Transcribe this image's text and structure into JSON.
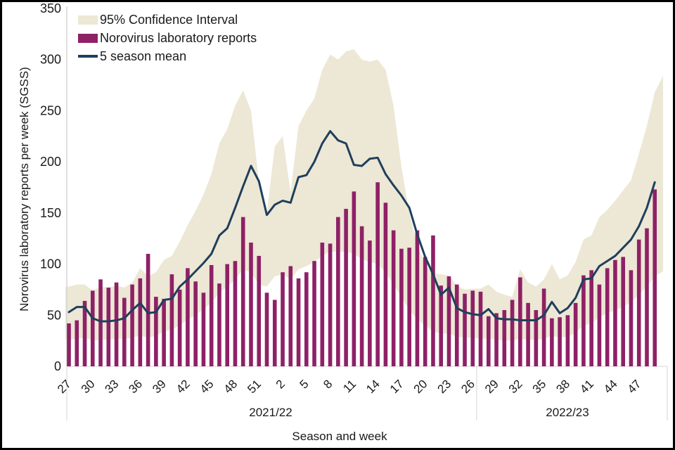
{
  "legend": {
    "ci_label": "95% Confidence Interval",
    "bars_label": "Norovirus laboratory reports",
    "line_label": "5 season mean"
  },
  "axes": {
    "y_title": "Norovirus laboratory reports per week (SGSS)",
    "x_title": "Season and week",
    "y_ticks": [
      0,
      50,
      100,
      150,
      200,
      250,
      300,
      350
    ],
    "x_label_every": 3,
    "season_labels": [
      "2021/22",
      "2022/23"
    ]
  },
  "colors": {
    "bar": "#8E2166",
    "mean_line": "#1F3F5C",
    "ci_band": "#EDE7D5",
    "axis_line": "#d6d6d6",
    "text": "#1a1a1a",
    "frame_border": "#000000"
  },
  "chart_data": {
    "type": "bar",
    "title": "",
    "xlabel": "Season and week",
    "ylabel": "Norovirus laboratory reports per week (SGSS)",
    "ylim": [
      0,
      350
    ],
    "grid": false,
    "legend_position": "top-left",
    "seasons": [
      {
        "label": "2021/22",
        "week_span": [
          27,
          26
        ]
      },
      {
        "label": "2022/23",
        "week_span": [
          27,
          49
        ]
      }
    ],
    "weeks": [
      27,
      28,
      29,
      30,
      31,
      32,
      33,
      34,
      35,
      36,
      37,
      38,
      39,
      40,
      41,
      42,
      43,
      44,
      45,
      46,
      47,
      48,
      49,
      50,
      51,
      52,
      1,
      2,
      3,
      4,
      5,
      6,
      7,
      8,
      9,
      10,
      11,
      12,
      13,
      14,
      15,
      16,
      17,
      18,
      19,
      20,
      21,
      22,
      23,
      24,
      25,
      26,
      27,
      28,
      29,
      30,
      31,
      32,
      33,
      34,
      35,
      36,
      37,
      38,
      39,
      40,
      41,
      42,
      43,
      44,
      45,
      46,
      47,
      48,
      49
    ],
    "season_of_week": [
      0,
      0,
      0,
      0,
      0,
      0,
      0,
      0,
      0,
      0,
      0,
      0,
      0,
      0,
      0,
      0,
      0,
      0,
      0,
      0,
      0,
      0,
      0,
      0,
      0,
      0,
      0,
      0,
      0,
      0,
      0,
      0,
      0,
      0,
      0,
      0,
      0,
      0,
      0,
      0,
      0,
      0,
      0,
      0,
      0,
      0,
      0,
      0,
      0,
      0,
      0,
      0,
      1,
      1,
      1,
      1,
      1,
      1,
      1,
      1,
      1,
      1,
      1,
      1,
      1,
      1,
      1,
      1,
      1,
      1,
      1,
      1,
      1,
      1,
      1
    ],
    "series": [
      {
        "name": "Norovirus laboratory reports",
        "type": "bar",
        "values": [
          42,
          45,
          64,
          74,
          85,
          77,
          82,
          67,
          80,
          86,
          110,
          68,
          66,
          90,
          75,
          96,
          83,
          72,
          99,
          81,
          100,
          103,
          146,
          121,
          108,
          72,
          65,
          92,
          98,
          86,
          92,
          103,
          121,
          120,
          146,
          154,
          171,
          137,
          123,
          180,
          160,
          133,
          115,
          116,
          133,
          107,
          128,
          79,
          88,
          80,
          71,
          74,
          73,
          49,
          52,
          55,
          65,
          87,
          62,
          55,
          76,
          47,
          48,
          50,
          62,
          89,
          94,
          80,
          96,
          104,
          107,
          94,
          124,
          135,
          173
        ]
      },
      {
        "name": "5 season mean",
        "type": "line",
        "values": [
          53,
          58,
          58,
          47,
          44,
          44,
          45,
          47,
          55,
          62,
          52,
          53,
          65,
          66,
          78,
          85,
          93,
          101,
          110,
          128,
          135,
          155,
          176,
          196,
          181,
          148,
          158,
          162,
          160,
          185,
          187,
          200,
          218,
          230,
          221,
          218,
          197,
          196,
          203,
          204,
          188,
          177,
          167,
          155,
          129,
          107,
          90,
          70,
          77,
          57,
          53,
          51,
          50,
          56,
          47,
          46,
          46,
          45,
          45,
          45,
          50,
          63,
          52,
          57,
          67,
          85,
          86,
          98,
          103,
          108,
          116,
          124,
          137,
          155,
          180
        ]
      },
      {
        "name": "95% Confidence Interval upper",
        "type": "area-upper",
        "values": [
          78,
          80,
          80,
          74,
          78,
          77,
          79,
          77,
          82,
          96,
          88,
          92,
          104,
          108,
          122,
          138,
          152,
          168,
          188,
          218,
          232,
          255,
          270,
          250,
          180,
          150,
          215,
          225,
          170,
          235,
          250,
          262,
          290,
          305,
          300,
          308,
          310,
          300,
          298,
          300,
          290,
          255,
          195,
          150,
          119,
          99,
          91,
          90,
          89,
          79,
          75,
          76,
          76,
          80,
          73,
          70,
          68,
          95,
          82,
          78,
          85,
          100,
          85,
          89,
          102,
          124,
          128,
          146,
          153,
          162,
          172,
          182,
          208,
          235,
          268
        ]
      },
      {
        "name": "95% Confidence Interval lower",
        "type": "area-lower",
        "values": [
          26,
          27,
          28,
          25,
          26,
          26,
          27,
          27,
          28,
          30,
          28,
          30,
          34,
          36,
          40,
          46,
          50,
          56,
          62,
          72,
          78,
          85,
          95,
          92,
          80,
          78,
          88,
          90,
          85,
          95,
          98,
          102,
          108,
          112,
          112,
          112,
          110,
          105,
          102,
          100,
          92,
          80,
          68,
          55,
          46,
          40,
          34,
          32,
          32,
          29,
          28,
          28,
          27,
          27,
          26,
          25,
          25,
          27,
          26,
          26,
          27,
          30,
          28,
          29,
          33,
          40,
          42,
          48,
          52,
          55,
          58,
          63,
          70,
          78,
          88
        ]
      }
    ],
    "ci_right_extension": {
      "upper": 284,
      "lower": 93
    }
  }
}
